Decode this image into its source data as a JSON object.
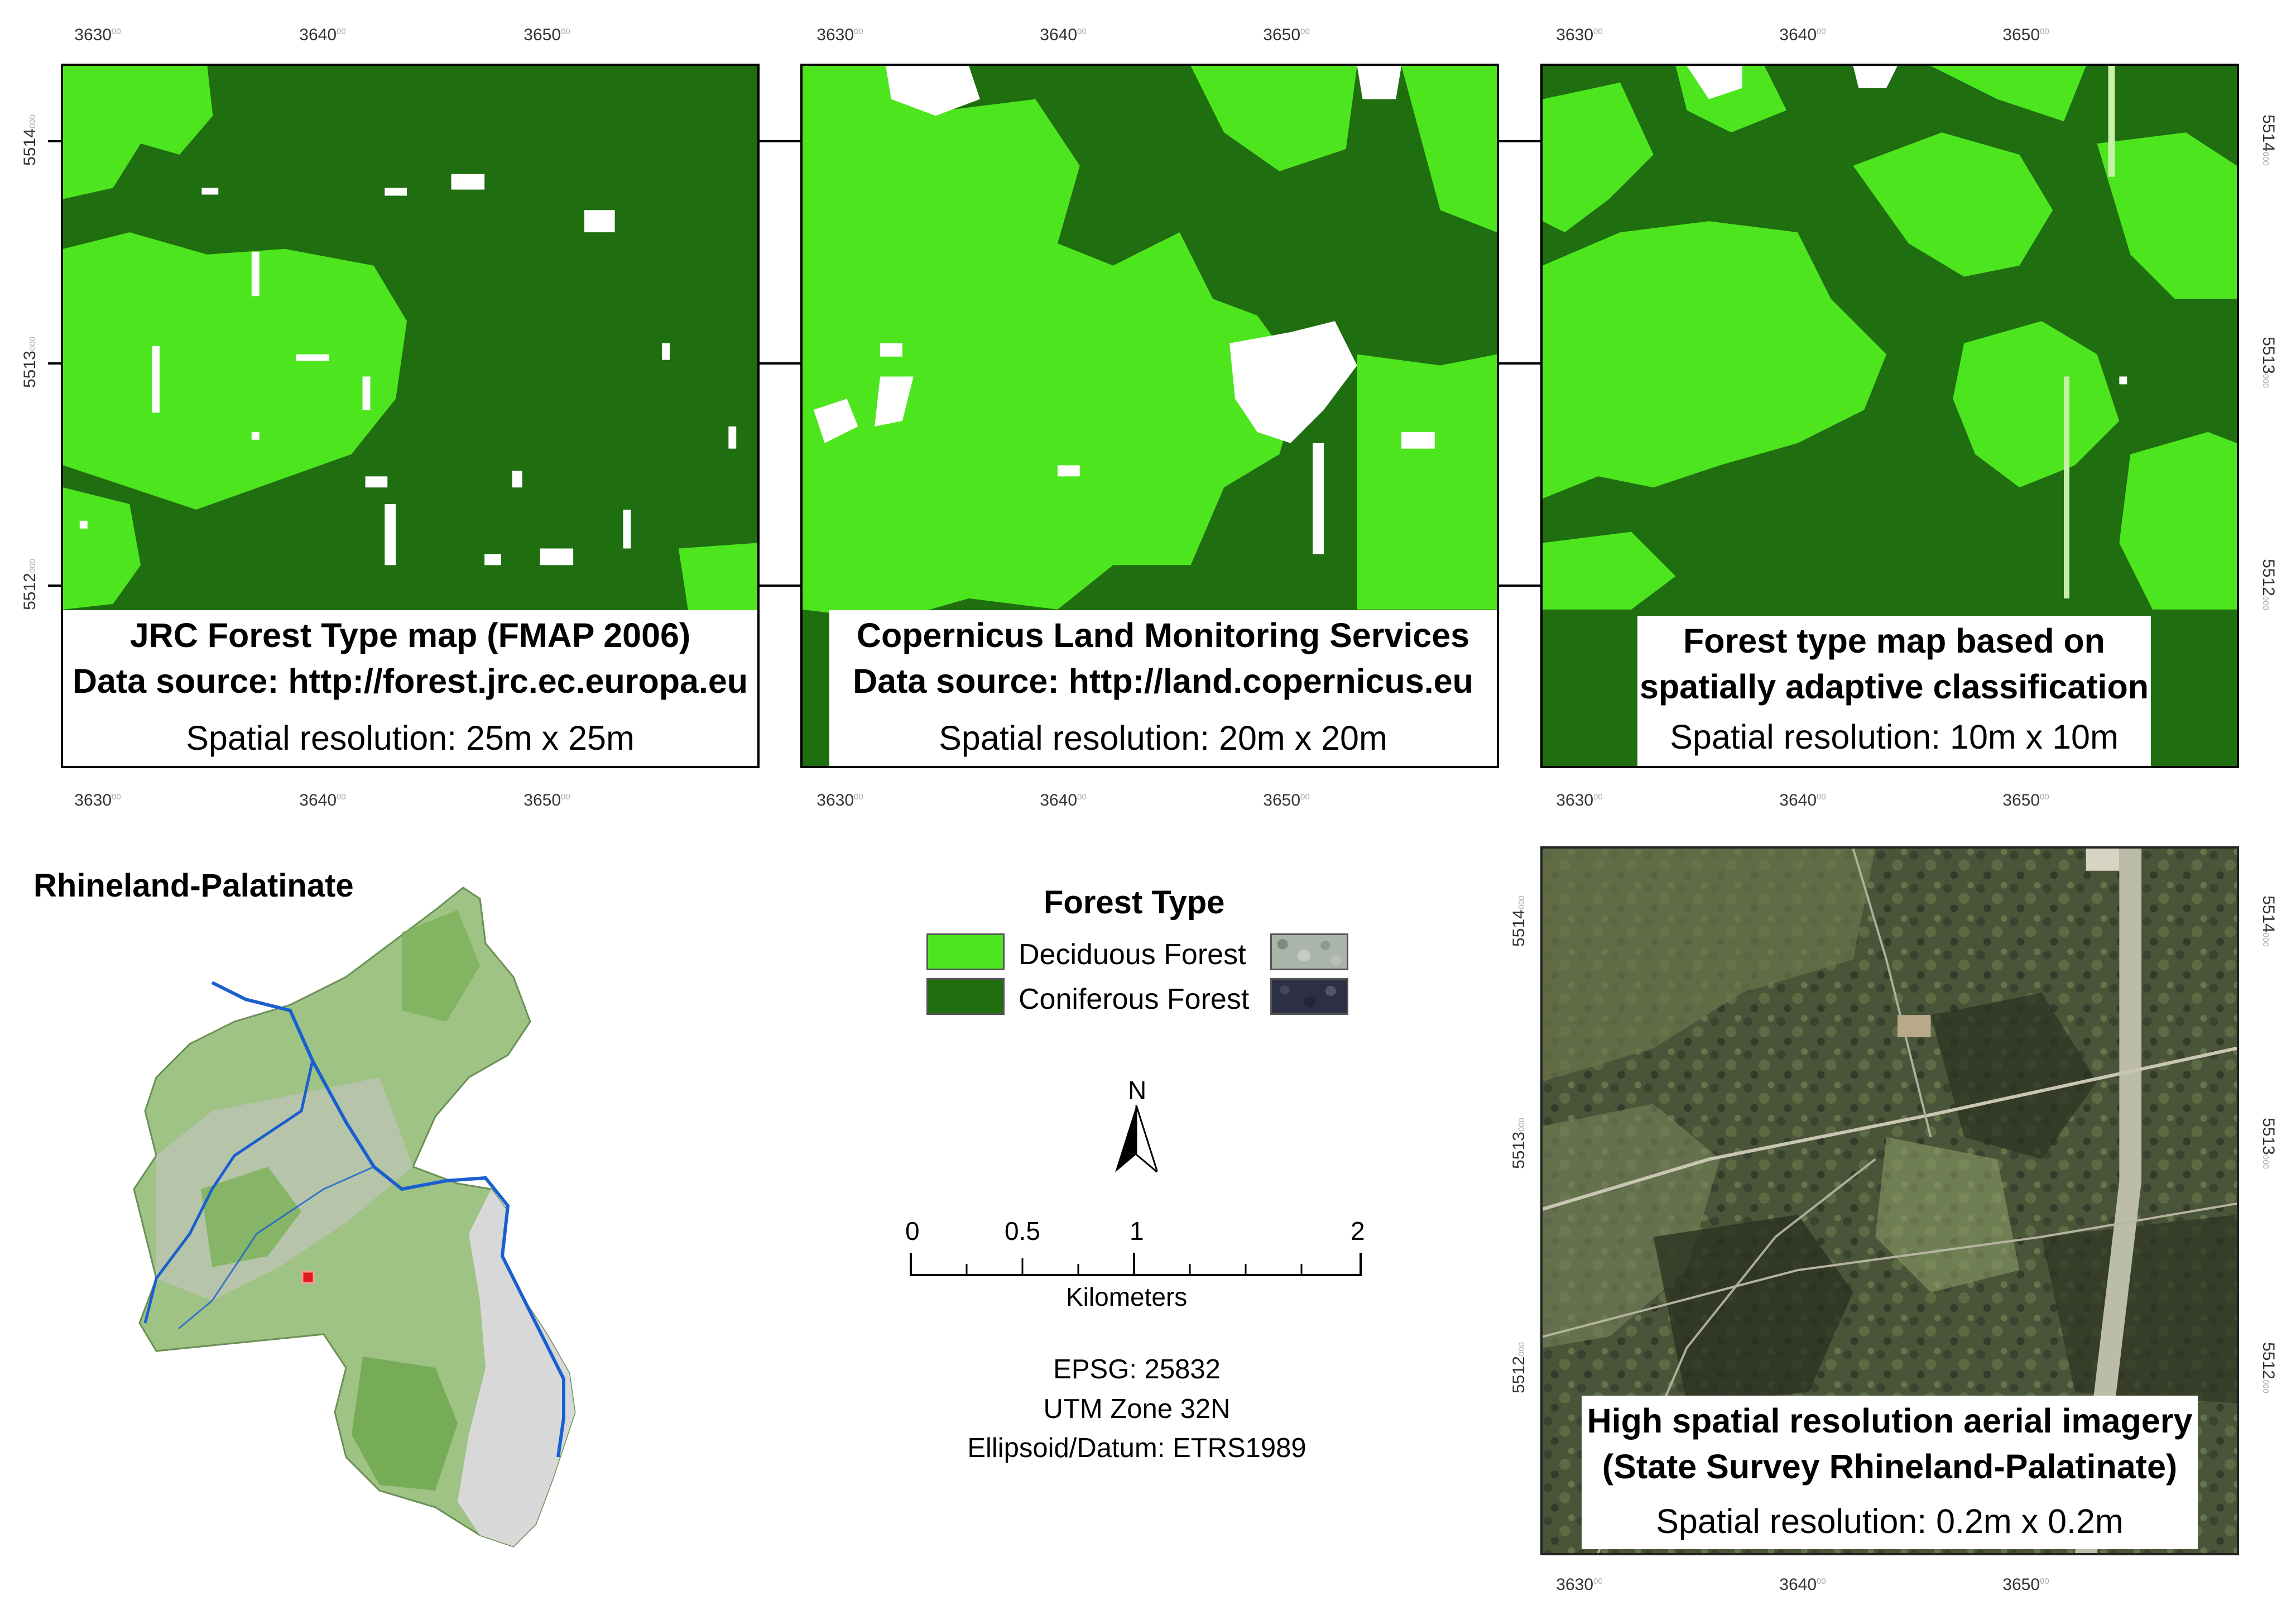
{
  "colors": {
    "deciduous": "#4de61e",
    "coniferous": "#1f6e10",
    "nodata": "#ffffff",
    "river": "#1a5fd0",
    "aerial_dark": "#3c4430",
    "aerial_light": "#8e9a6e"
  },
  "axis": {
    "x_ticks": [
      {
        "label": "3630",
        "sup": "00"
      },
      {
        "label": "3640",
        "sup": "00"
      },
      {
        "label": "3650",
        "sup": "00"
      }
    ],
    "y_ticks": [
      {
        "label": "5514",
        "sup": "000"
      },
      {
        "label": "5513",
        "sup": "000"
      },
      {
        "label": "5512",
        "sup": "000"
      }
    ]
  },
  "panels": {
    "jrc": {
      "line1": "JRC Forest Type map (FMAP 2006)",
      "line2": "Data source: http://forest.jrc.ec.europa.eu",
      "line3": "Spatial resolution: 25m  x 25m"
    },
    "copernicus": {
      "line1": "Copernicus Land Monitoring Services",
      "line2": "Data source: http://land.copernicus.eu",
      "line3": "Spatial resolution: 20m  x 20m"
    },
    "adaptive": {
      "line1": "Forest type map based on",
      "line2": "spatially adaptive classification",
      "line3": "Spatial resolution: 10m x 10m"
    },
    "aerial": {
      "line1": "High spatial resolution aerial imagery",
      "line2": "(State Survey Rhineland-Palatinate)",
      "line3": "Spatial resolution: 0.2m  x 0.2m"
    }
  },
  "overview": {
    "title": "Rhineland-Palatinate"
  },
  "legend": {
    "title": "Forest Type",
    "items": [
      {
        "label": "Deciduous Forest"
      },
      {
        "label": "Coniferous Forest"
      }
    ]
  },
  "north_arrow": {
    "label": "N"
  },
  "scalebar": {
    "labels": [
      "0",
      "0.5",
      "1",
      "2"
    ],
    "unit": "Kilometers"
  },
  "projection": {
    "epsg": "EPSG: 25832",
    "zone": "UTM Zone 32N",
    "datum": "Ellipsoid/Datum: ETRS1989"
  }
}
